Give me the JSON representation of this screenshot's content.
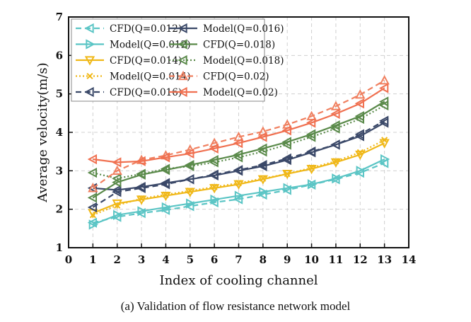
{
  "chart_data": {
    "type": "line",
    "title": "",
    "caption": "(a) Validation of flow resistance network model",
    "xlabel": "Index of cooling channel",
    "ylabel": "Average velocity(m/s)",
    "xlim": [
      0,
      14
    ],
    "ylim": [
      1,
      7
    ],
    "xticks": [
      0,
      1,
      2,
      3,
      4,
      5,
      6,
      7,
      8,
      9,
      10,
      11,
      12,
      13,
      14
    ],
    "yticks": [
      1,
      2,
      3,
      4,
      5,
      6,
      7
    ],
    "grid": true,
    "legend_position": "top-left",
    "x": [
      1,
      2,
      3,
      4,
      5,
      6,
      7,
      8,
      9,
      10,
      11,
      12,
      13
    ],
    "series": [
      {
        "name": "CFD(Q=0.012)",
        "color": "#5bc5c5",
        "dash": "dashed",
        "marker": "triangle-left",
        "values": [
          1.65,
          1.8,
          1.9,
          1.98,
          2.08,
          2.18,
          2.26,
          2.38,
          2.5,
          2.64,
          2.78,
          2.95,
          3.2
        ]
      },
      {
        "name": "Model(Q=0.012)",
        "color": "#5bc5c5",
        "dash": "solid",
        "marker": "triangle-right",
        "values": [
          1.6,
          1.85,
          1.95,
          2.05,
          2.15,
          2.25,
          2.35,
          2.45,
          2.55,
          2.65,
          2.8,
          3.0,
          3.3
        ]
      },
      {
        "name": "CFD(Q=0.014)",
        "color": "#f0b818",
        "dash": "solid",
        "marker": "triangle-down",
        "values": [
          1.9,
          2.15,
          2.25,
          2.35,
          2.45,
          2.55,
          2.65,
          2.78,
          2.92,
          3.05,
          3.22,
          3.42,
          3.72
        ]
      },
      {
        "name": "Model(Q=0.014)",
        "color": "#f0b818",
        "dash": "dotted",
        "marker": "x",
        "values": [
          1.85,
          2.1,
          2.28,
          2.38,
          2.48,
          2.58,
          2.68,
          2.8,
          2.92,
          3.08,
          3.25,
          3.48,
          3.8
        ]
      },
      {
        "name": "CFD(Q=0.016)",
        "color": "#3a4868",
        "dash": "dashed",
        "marker": "triangle-left",
        "values": [
          2.05,
          2.45,
          2.55,
          2.65,
          2.78,
          2.9,
          3.02,
          3.15,
          3.32,
          3.5,
          3.68,
          3.95,
          4.3
        ]
      },
      {
        "name": "Model(Q=0.016)",
        "color": "#3a4868",
        "dash": "solid",
        "marker": "triangle-left",
        "values": [
          2.55,
          2.5,
          2.58,
          2.68,
          2.78,
          2.88,
          3.0,
          3.12,
          3.28,
          3.48,
          3.68,
          3.9,
          4.25
        ]
      },
      {
        "name": "CFD(Q=0.018)",
        "color": "#5a8a4a",
        "dash": "solid",
        "marker": "triangle-left",
        "values": [
          2.3,
          2.7,
          2.9,
          3.02,
          3.15,
          3.28,
          3.42,
          3.58,
          3.75,
          3.95,
          4.18,
          4.42,
          4.8
        ]
      },
      {
        "name": "Model(Q=0.018)",
        "color": "#5a8a4a",
        "dash": "dotted",
        "marker": "triangle-left",
        "values": [
          2.95,
          2.8,
          2.92,
          3.05,
          3.12,
          3.22,
          3.35,
          3.5,
          3.68,
          3.88,
          4.1,
          4.35,
          4.7
        ]
      },
      {
        "name": "CFD(Q=0.02)",
        "color": "#f08060",
        "dash": "dashed",
        "marker": "triangle-up",
        "values": [
          2.55,
          3.0,
          3.28,
          3.4,
          3.55,
          3.72,
          3.88,
          4.02,
          4.2,
          4.42,
          4.68,
          4.98,
          5.35
        ]
      },
      {
        "name": "Model(Q=0.02)",
        "color": "#f07050",
        "dash": "solid",
        "marker": "triangle-left",
        "values": [
          3.3,
          3.22,
          3.25,
          3.35,
          3.45,
          3.58,
          3.72,
          3.88,
          4.05,
          4.25,
          4.48,
          4.75,
          5.15
        ]
      }
    ]
  }
}
